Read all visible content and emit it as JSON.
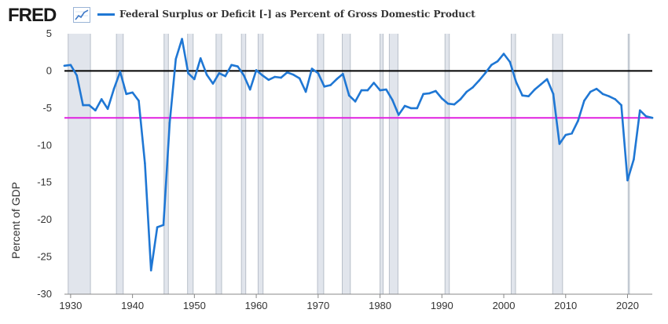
{
  "header": {
    "logo_text": "FRED",
    "logo_icon": "trend-chart-icon",
    "legend_label": "Federal Surplus or Deficit [-] as Percent of Gross Domestic Product"
  },
  "colors": {
    "series_line": "#1f77d4",
    "zero_line": "#000000",
    "mean_line": "#e020e0",
    "recession_shade": "#e1e5ec",
    "recession_edge": "#b8bfc9"
  },
  "chart_data": {
    "type": "line",
    "title": "",
    "xlabel": "",
    "ylabel": "Percent of GDP",
    "xlim": [
      1929,
      2024
    ],
    "ylim": [
      -30,
      5
    ],
    "x_ticks": [
      1930,
      1940,
      1950,
      1960,
      1970,
      1980,
      1990,
      2000,
      2010,
      2020
    ],
    "y_ticks": [
      5,
      0,
      -5,
      -10,
      -15,
      -20,
      -25,
      -30
    ],
    "grid": false,
    "legend": "top-left",
    "series": [
      {
        "name": "Federal Surplus or Deficit [-] as Percent of Gross Domestic Product",
        "x": [
          1929,
          1930,
          1931,
          1932,
          1933,
          1934,
          1935,
          1936,
          1937,
          1938,
          1939,
          1940,
          1941,
          1942,
          1943,
          1944,
          1945,
          1946,
          1947,
          1948,
          1949,
          1950,
          1951,
          1952,
          1953,
          1954,
          1955,
          1956,
          1957,
          1958,
          1959,
          1960,
          1961,
          1962,
          1963,
          1964,
          1965,
          1966,
          1967,
          1968,
          1969,
          1970,
          1971,
          1972,
          1973,
          1974,
          1975,
          1976,
          1977,
          1978,
          1979,
          1980,
          1981,
          1982,
          1983,
          1984,
          1985,
          1986,
          1987,
          1988,
          1989,
          1990,
          1991,
          1992,
          1993,
          1994,
          1995,
          1996,
          1997,
          1998,
          1999,
          2000,
          2001,
          2002,
          2003,
          2004,
          2005,
          2006,
          2007,
          2008,
          2009,
          2010,
          2011,
          2012,
          2013,
          2014,
          2015,
          2016,
          2017,
          2018,
          2019,
          2020,
          2021,
          2022,
          2023,
          2024
        ],
        "values": [
          0.7,
          0.8,
          -0.6,
          -4.6,
          -4.6,
          -5.3,
          -3.8,
          -5.1,
          -2.4,
          -0.1,
          -3.1,
          -2.9,
          -4.0,
          -12.4,
          -26.8,
          -21.0,
          -20.7,
          -7.0,
          1.6,
          4.3,
          -0.3,
          -1.1,
          1.7,
          -0.5,
          -1.7,
          -0.3,
          -0.7,
          0.8,
          0.6,
          -0.6,
          -2.5,
          0.1,
          -0.6,
          -1.2,
          -0.8,
          -0.9,
          -0.2,
          -0.5,
          -1.0,
          -2.8,
          0.3,
          -0.3,
          -2.1,
          -1.9,
          -1.1,
          -0.4,
          -3.3,
          -4.1,
          -2.6,
          -2.6,
          -1.6,
          -2.6,
          -2.5,
          -3.9,
          -5.9,
          -4.7,
          -5.0,
          -5.0,
          -3.1,
          -3.0,
          -2.7,
          -3.7,
          -4.4,
          -4.5,
          -3.8,
          -2.8,
          -2.2,
          -1.3,
          -0.3,
          0.8,
          1.3,
          2.3,
          1.2,
          -1.5,
          -3.3,
          -3.4,
          -2.5,
          -1.8,
          -1.1,
          -3.1,
          -9.8,
          -8.6,
          -8.4,
          -6.7,
          -4.0,
          -2.8,
          -2.4,
          -3.1,
          -3.4,
          -3.8,
          -4.6,
          -14.7,
          -11.9,
          -5.3,
          -6.1,
          -6.3
        ]
      }
    ],
    "reference_lines": [
      {
        "label": "zero",
        "y": 0
      },
      {
        "label": "mean",
        "y": -6.3
      }
    ],
    "recessions": [
      [
        1929.6,
        1933.2
      ],
      [
        1937.4,
        1938.5
      ],
      [
        1945.1,
        1945.8
      ],
      [
        1948.9,
        1949.8
      ],
      [
        1953.5,
        1954.4
      ],
      [
        1957.6,
        1958.3
      ],
      [
        1960.3,
        1961.1
      ],
      [
        1969.9,
        1970.9
      ],
      [
        1973.9,
        1975.2
      ],
      [
        1980.0,
        1980.5
      ],
      [
        1981.5,
        1982.9
      ],
      [
        1990.5,
        1991.2
      ],
      [
        2001.2,
        2001.9
      ],
      [
        2007.9,
        2009.5
      ],
      [
        2020.1,
        2020.3
      ]
    ]
  }
}
